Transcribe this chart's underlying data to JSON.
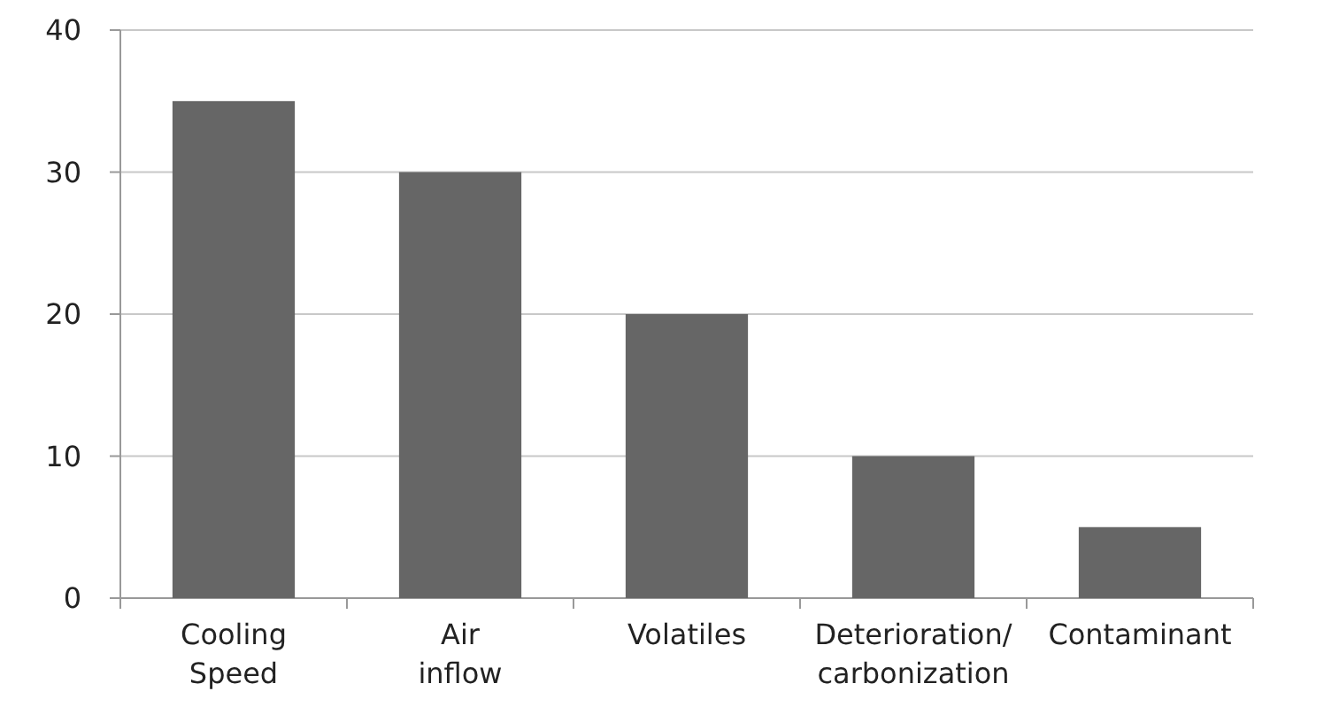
{
  "chart_data": {
    "type": "bar",
    "categories": [
      "Cooling Speed",
      "Air inflow",
      "Volatiles",
      "Deterioration/carbonization",
      "Contaminant"
    ],
    "values": [
      35,
      30,
      20,
      10,
      5
    ],
    "color": "#666666",
    "ylim": [
      0,
      40
    ],
    "yticks": [
      0,
      10,
      20,
      30,
      40
    ],
    "grid": "y"
  }
}
